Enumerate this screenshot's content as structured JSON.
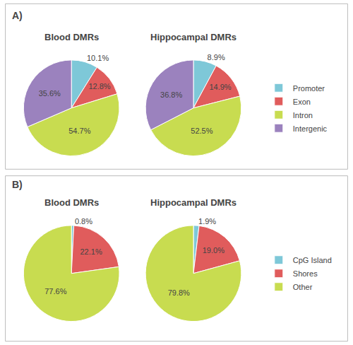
{
  "chart_data": [
    {
      "type": "pie",
      "title": "Blood DMRs",
      "annotations": [
        "A)"
      ],
      "categories": [
        "Promoter",
        "Exon",
        "Intron",
        "Intergenic"
      ],
      "values": [
        10.1,
        12.8,
        54.7,
        35.6
      ],
      "value_labels": [
        "10.1%",
        "12.8%",
        "54.7%",
        "35.6%"
      ],
      "colors": [
        "#7EC8D8",
        "#E05C5C",
        "#C8DC50",
        "#9B82BE"
      ],
      "data_labels": true,
      "legend": "right"
    },
    {
      "type": "pie",
      "title": "Hippocampal DMRs",
      "categories": [
        "Promoter",
        "Exon",
        "Intron",
        "Intergenic"
      ],
      "values": [
        8.9,
        14.9,
        52.5,
        36.8
      ],
      "value_labels": [
        "8.9%",
        "14.9%",
        "52.5%",
        "36.8%"
      ],
      "colors": [
        "#7EC8D8",
        "#E05C5C",
        "#C8DC50",
        "#9B82BE"
      ],
      "data_labels": true,
      "legend": "right"
    },
    {
      "type": "pie",
      "title": "Blood DMRs",
      "annotations": [
        "B)"
      ],
      "categories": [
        "CpG Island",
        "Shores",
        "Other"
      ],
      "values": [
        0.8,
        22.1,
        77.6
      ],
      "value_labels": [
        "0.8%",
        "22.1%",
        "77.6%"
      ],
      "colors": [
        "#7EC8D8",
        "#E05C5C",
        "#C8DC50"
      ],
      "data_labels": true,
      "legend": "right"
    },
    {
      "type": "pie",
      "title": "Hippocampal DMRs",
      "categories": [
        "CpG Island",
        "Shores",
        "Other"
      ],
      "values": [
        1.9,
        19.0,
        79.8
      ],
      "value_labels": [
        "1.9%",
        "19.0%",
        "79.8%"
      ],
      "colors": [
        "#7EC8D8",
        "#E05C5C",
        "#C8DC50"
      ],
      "data_labels": true,
      "legend": "right"
    }
  ]
}
